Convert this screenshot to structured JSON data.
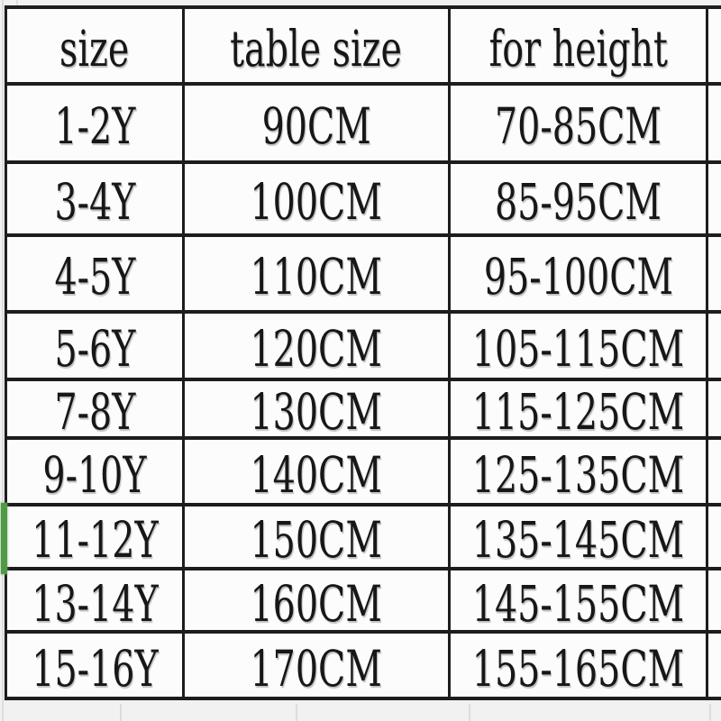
{
  "table": {
    "headers": [
      "size",
      "table size",
      "for height"
    ],
    "rows": [
      [
        "1-2Y",
        "90CM",
        "70-85CM"
      ],
      [
        "3-4Y",
        "100CM",
        "85-95CM"
      ],
      [
        "4-5Y",
        "110CM",
        "95-100CM"
      ],
      [
        "5-6Y",
        "120CM",
        "105-115CM"
      ],
      [
        "7-8Y",
        "130CM",
        "115-125CM"
      ],
      [
        "9-10Y",
        "140CM",
        "125-135CM"
      ],
      [
        "11-12Y",
        "150CM",
        "135-145CM"
      ],
      [
        "13-14Y",
        "160CM",
        "145-155CM"
      ],
      [
        "15-16Y",
        "170CM",
        "155-165CM"
      ]
    ],
    "selected_row": "11-12Y"
  },
  "colors": {
    "table_border": "#1d1d1d",
    "text": "#171717",
    "cell_background": "#fcfcfc",
    "page_background": "#f1f1f1",
    "faint_gridline": "#dcdcdc",
    "selection_green": "#4f9b45"
  }
}
